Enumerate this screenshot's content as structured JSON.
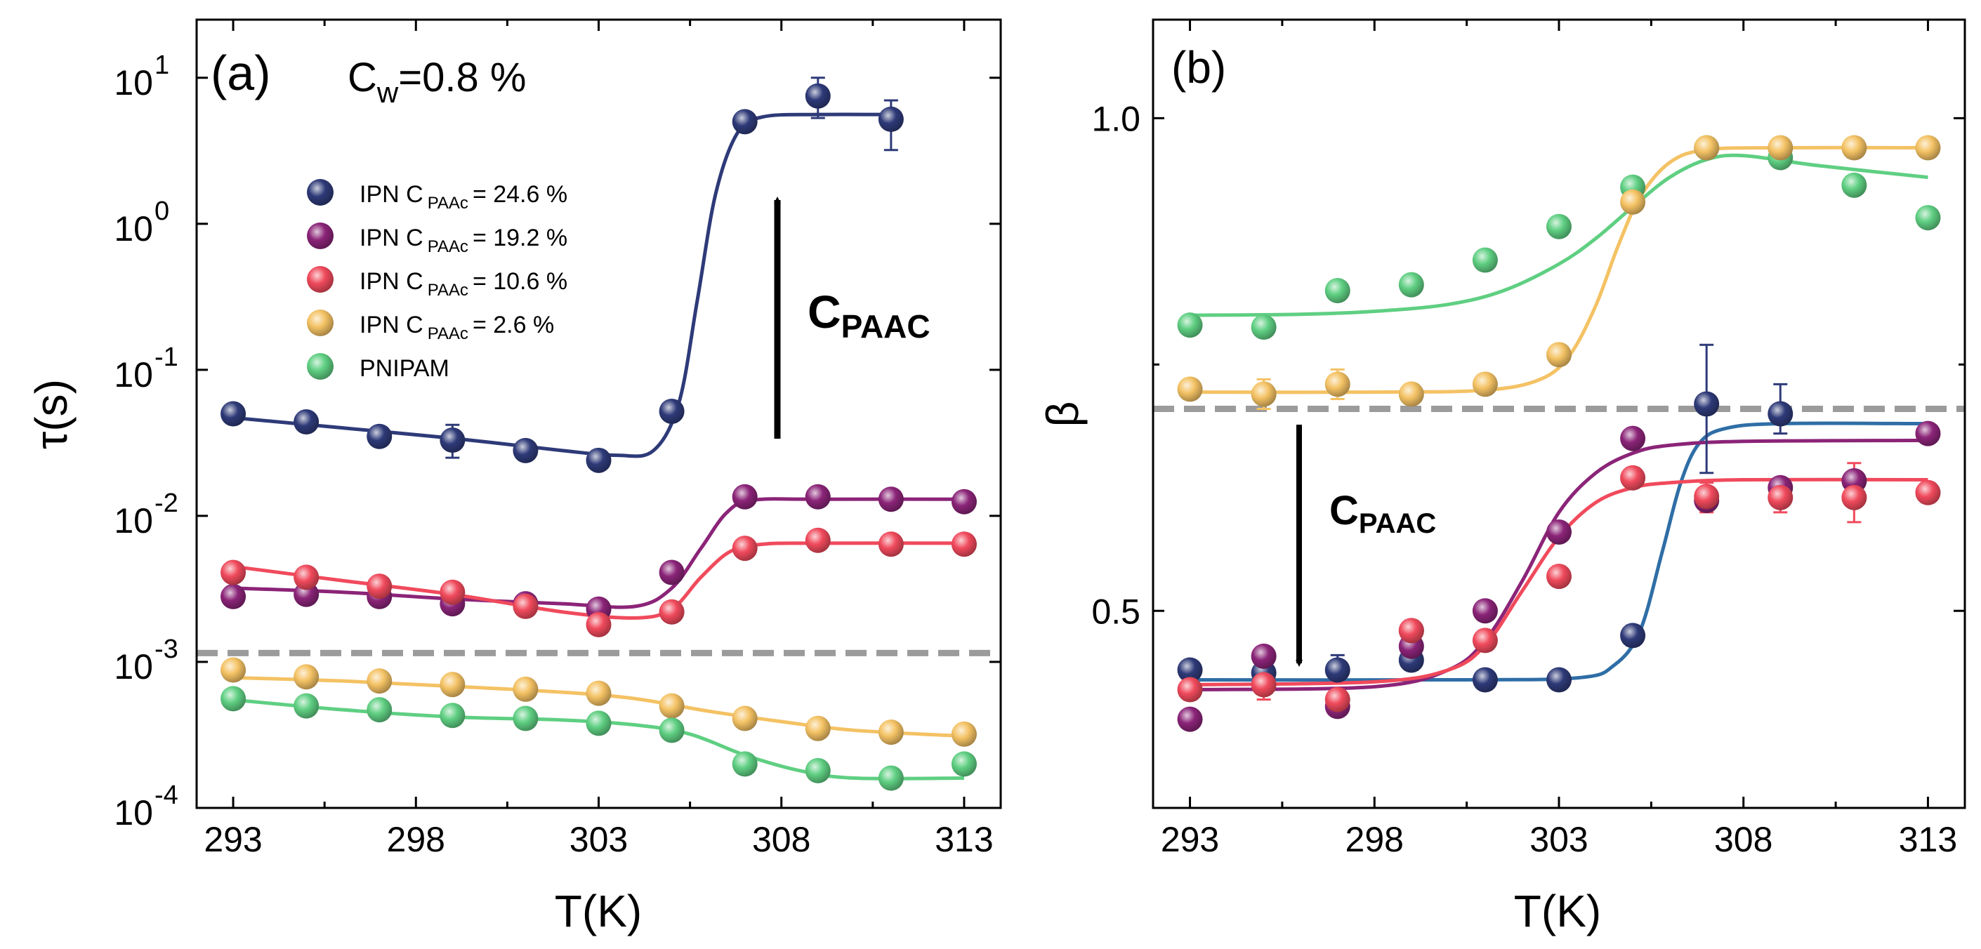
{
  "colors": {
    "navy": "#2e3a78",
    "purple": "#8b2478",
    "red": "#f04a5c",
    "orange": "#f4c264",
    "green": "#5fcf82",
    "blue_fit": "#2f6ea6",
    "gray_dash": "#9b9b9b"
  },
  "chart_data": [
    {
      "type": "scatter",
      "panel": "(a)",
      "annotation": "Cw=0.8 %",
      "annotation_main": "C",
      "annotation_sub": "w",
      "annotation_rest": "=0.8 %",
      "arrow_label_main": "C",
      "arrow_label_sub": "PAAC",
      "arrow_direction": "up",
      "xlabel": "T(K)",
      "ylabel": "τ(s)",
      "xscale": "linear",
      "yscale": "log",
      "xlim": [
        292,
        314
      ],
      "ylim": [
        0.0001,
        25
      ],
      "xticks": [
        293,
        298,
        303,
        308,
        313
      ],
      "xtick_labels": [
        "293",
        "298",
        "303",
        "308",
        "313"
      ],
      "yticks": [
        0.0001,
        0.001,
        0.01,
        0.1,
        1,
        10
      ],
      "ytick_labels": [
        {
          "base": "10",
          "exp": "-4"
        },
        {
          "base": "10",
          "exp": "-3"
        },
        {
          "base": "10",
          "exp": "-2"
        },
        {
          "base": "10",
          "exp": "-1"
        },
        {
          "base": "10",
          "exp": "0"
        },
        {
          "base": "10",
          "exp": "1"
        }
      ],
      "reference_line": {
        "y": 0.00115,
        "style": "dashed",
        "color": "gray"
      },
      "legend": [
        {
          "prefix": "IPN C",
          "sub": "PAAc",
          "suffix": "= 24.6 %",
          "color": "navy"
        },
        {
          "prefix": "IPN C",
          "sub": "PAAc",
          "suffix": "= 19.2 %",
          "color": "purple"
        },
        {
          "prefix": "IPN C",
          "sub": "PAAc",
          "suffix": "= 10.6 %",
          "color": "red"
        },
        {
          "prefix": "IPN C",
          "sub": "PAAc",
          "suffix": "= 2.6 %",
          "color": "orange"
        },
        {
          "prefix": "PNIPAM",
          "sub": "",
          "suffix": "",
          "color": "green"
        }
      ],
      "series": [
        {
          "name": "IPN CPAAc = 24.6 %",
          "color": "navy",
          "x": [
            293,
            295,
            297,
            299,
            301,
            303,
            305,
            307,
            309,
            311
          ],
          "y": [
            0.05,
            0.044,
            0.035,
            0.033,
            0.028,
            0.024,
            0.052,
            5.0,
            7.5,
            5.2
          ],
          "err_low": [
            0.045,
            0.04,
            0.031,
            0.025,
            0.025,
            0.021,
            0.047,
            4.6,
            5.3,
            3.2
          ],
          "err_high": [
            0.056,
            0.049,
            0.039,
            0.042,
            0.031,
            0.027,
            0.057,
            5.4,
            10.0,
            7.0
          ],
          "fit_x": [
            293,
            296,
            299,
            302,
            303.5,
            304.5,
            305.2,
            305.7,
            306.2,
            306.8,
            307.5,
            309,
            311
          ],
          "fit_y": [
            0.047,
            0.04,
            0.034,
            0.028,
            0.026,
            0.028,
            0.06,
            0.3,
            1.6,
            4.2,
            5.4,
            5.6,
            5.6
          ]
        },
        {
          "name": "IPN CPAAc = 19.2 %",
          "color": "purple",
          "x": [
            293,
            295,
            297,
            299,
            301,
            303,
            305,
            307,
            309,
            311,
            313
          ],
          "y": [
            0.0028,
            0.0029,
            0.0028,
            0.0025,
            0.0025,
            0.0023,
            0.0041,
            0.0135,
            0.0135,
            0.013,
            0.0125
          ],
          "fit_x": [
            293,
            296,
            299,
            302,
            304,
            305,
            305.8,
            306.5,
            307.2,
            309,
            313
          ],
          "fit_y": [
            0.0032,
            0.003,
            0.0027,
            0.0025,
            0.0024,
            0.0032,
            0.006,
            0.0105,
            0.0128,
            0.013,
            0.013
          ]
        },
        {
          "name": "IPN CPAAc = 10.6 %",
          "color": "red",
          "x": [
            293,
            295,
            297,
            299,
            301,
            303,
            305,
            307,
            309,
            311,
            313
          ],
          "y": [
            0.0041,
            0.0038,
            0.0033,
            0.003,
            0.0024,
            0.0018,
            0.0022,
            0.006,
            0.0068,
            0.0064,
            0.0064
          ],
          "fit_x": [
            293,
            296,
            299,
            302,
            304,
            305,
            305.8,
            306.6,
            307.5,
            309,
            313
          ],
          "fit_y": [
            0.0045,
            0.0036,
            0.0029,
            0.0022,
            0.002,
            0.0023,
            0.0038,
            0.0057,
            0.0064,
            0.0065,
            0.0065
          ]
        },
        {
          "name": "IPN CPAAc = 2.6 %",
          "color": "orange",
          "x": [
            293,
            295,
            297,
            299,
            301,
            303,
            305,
            307,
            309,
            311,
            313
          ],
          "y": [
            0.00088,
            0.00079,
            0.00074,
            0.0007,
            0.00065,
            0.00061,
            0.0005,
            0.00041,
            0.00035,
            0.00033,
            0.00032
          ],
          "fit_x": [
            293,
            296,
            299,
            302,
            304,
            306,
            308,
            310,
            313
          ],
          "fit_y": [
            0.00078,
            0.00074,
            0.00068,
            0.00062,
            0.00056,
            0.00046,
            0.00039,
            0.00034,
            0.00031
          ]
        },
        {
          "name": "PNIPAM",
          "color": "green",
          "x": [
            293,
            295,
            297,
            299,
            301,
            303,
            305,
            307,
            309,
            311,
            313
          ],
          "y": [
            0.00056,
            0.0005,
            0.00047,
            0.00043,
            0.00041,
            0.00038,
            0.00034,
            0.0002,
            0.00018,
            0.00016,
            0.0002
          ],
          "fit_x": [
            293,
            296,
            299,
            302,
            304,
            305.5,
            307,
            308.5,
            310,
            313
          ],
          "fit_y": [
            0.00055,
            0.00047,
            0.00042,
            0.0004,
            0.00037,
            0.00032,
            0.00023,
            0.00018,
            0.00016,
            0.00016
          ]
        }
      ]
    },
    {
      "type": "scatter",
      "panel": "(b)",
      "arrow_label_main": "C",
      "arrow_label_sub": "PAAC",
      "arrow_direction": "down",
      "xlabel": "T(K)",
      "ylabel": "β",
      "xscale": "linear",
      "yscale": "linear",
      "xlim": [
        292,
        314
      ],
      "ylim": [
        0.3,
        1.1
      ],
      "xticks": [
        293,
        298,
        303,
        308,
        313
      ],
      "xtick_labels": [
        "293",
        "298",
        "303",
        "308",
        "313"
      ],
      "yticks": [
        0.5,
        1.0
      ],
      "ytick_labels": [
        "0.5",
        "1.0"
      ],
      "reference_line": {
        "y": 0.705,
        "style": "dashed",
        "color": "gray"
      },
      "series": [
        {
          "name": "PNIPAM",
          "color": "green",
          "x": [
            293,
            295,
            297,
            299,
            301,
            303,
            305,
            307,
            309,
            311,
            313
          ],
          "y": [
            0.79,
            0.788,
            0.825,
            0.831,
            0.856,
            0.89,
            0.93,
            0.97,
            0.96,
            0.932,
            0.899
          ],
          "fit_x": [
            293,
            296,
            298,
            300,
            301.5,
            303,
            304,
            305,
            306,
            307,
            308,
            310,
            313
          ],
          "fit_y": [
            0.8,
            0.801,
            0.804,
            0.811,
            0.825,
            0.852,
            0.878,
            0.91,
            0.94,
            0.958,
            0.962,
            0.952,
            0.94
          ]
        },
        {
          "name": "IPN CPAAc = 2.6 %",
          "color": "orange",
          "x": [
            293,
            295,
            297,
            299,
            301,
            303,
            305,
            307,
            309,
            311,
            313
          ],
          "y": [
            0.725,
            0.72,
            0.73,
            0.72,
            0.73,
            0.76,
            0.915,
            0.97,
            0.97,
            0.97,
            0.97
          ],
          "err_low": [
            0.715,
            0.705,
            0.715,
            0.71,
            0.72,
            0.75,
            0.905,
            0.96,
            0.96,
            0.96,
            0.96
          ],
          "err_high": [
            0.735,
            0.735,
            0.745,
            0.73,
            0.74,
            0.77,
            0.925,
            0.98,
            0.98,
            0.98,
            0.98
          ],
          "fit_x": [
            293,
            298,
            301,
            302.5,
            303.3,
            304,
            304.6,
            305.2,
            306,
            307,
            309,
            313
          ],
          "fit_y": [
            0.722,
            0.722,
            0.724,
            0.735,
            0.76,
            0.81,
            0.87,
            0.92,
            0.955,
            0.968,
            0.97,
            0.97
          ]
        },
        {
          "name": "IPN CPAAc = 24.6 %",
          "color": "navy",
          "fit_color": "blue_fit",
          "x": [
            293,
            295,
            297,
            299,
            301,
            303,
            305,
            307,
            309
          ],
          "y": [
            0.44,
            0.437,
            0.44,
            0.45,
            0.43,
            0.43,
            0.475,
            0.71,
            0.7
          ],
          "err_low": [
            0.435,
            0.43,
            0.43,
            0.44,
            0.425,
            0.425,
            0.465,
            0.64,
            0.68
          ],
          "err_high": [
            0.445,
            0.445,
            0.455,
            0.46,
            0.435,
            0.435,
            0.485,
            0.77,
            0.73
          ],
          "fit_x": [
            293,
            300,
            303.5,
            304.5,
            305.2,
            305.8,
            306.3,
            306.8,
            307.5,
            309,
            313
          ],
          "fit_y": [
            0.43,
            0.43,
            0.432,
            0.445,
            0.48,
            0.56,
            0.63,
            0.67,
            0.685,
            0.69,
            0.69
          ]
        },
        {
          "name": "IPN CPAAc = 19.2 %",
          "color": "purple",
          "x": [
            293,
            295,
            297,
            299,
            299,
            301,
            303,
            305,
            307,
            309,
            311,
            313
          ],
          "y": [
            0.39,
            0.454,
            0.403,
            0.464,
            0.48,
            0.5,
            0.58,
            0.675,
            0.612,
            0.625,
            0.632,
            0.68
          ],
          "fit_x": [
            293,
            298,
            300,
            301,
            302,
            303,
            304,
            305,
            306,
            308,
            313
          ],
          "fit_y": [
            0.42,
            0.423,
            0.44,
            0.47,
            0.53,
            0.6,
            0.64,
            0.66,
            0.668,
            0.672,
            0.673
          ]
        },
        {
          "name": "IPN CPAAc = 10.6 %",
          "color": "red",
          "x": [
            293,
            295,
            297,
            299,
            301,
            303,
            305,
            307,
            309,
            311,
            313
          ],
          "y": [
            0.42,
            0.425,
            0.41,
            0.48,
            0.47,
            0.535,
            0.635,
            0.616,
            0.615,
            0.615,
            0.62
          ],
          "err_low": [
            0.41,
            0.41,
            0.4,
            0.47,
            0.46,
            0.525,
            0.625,
            0.6,
            0.6,
            0.59,
            0.61
          ],
          "err_high": [
            0.43,
            0.44,
            0.42,
            0.49,
            0.48,
            0.545,
            0.645,
            0.63,
            0.63,
            0.65,
            0.63
          ],
          "fit_x": [
            293,
            298,
            300,
            301,
            302,
            303,
            304,
            305,
            306,
            308,
            313
          ],
          "fit_y": [
            0.425,
            0.428,
            0.44,
            0.465,
            0.52,
            0.575,
            0.61,
            0.625,
            0.63,
            0.633,
            0.633
          ]
        }
      ]
    }
  ]
}
